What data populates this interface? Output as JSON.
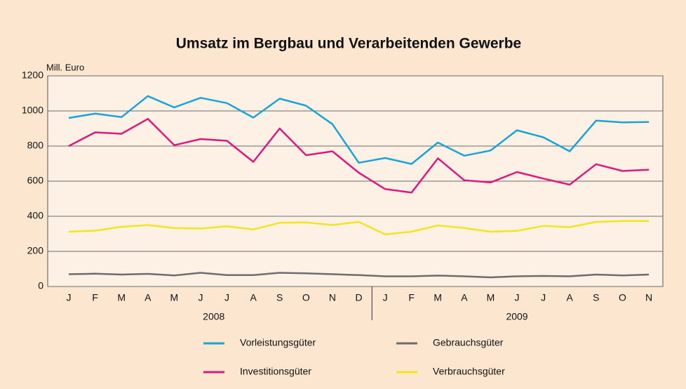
{
  "chart_data": {
    "type": "line",
    "title": "Umsatz im Bergbau und Verarbeitenden Gewerbe",
    "y_label": "Mill. Euro",
    "categories": [
      "J",
      "F",
      "M",
      "A",
      "M",
      "J",
      "J",
      "A",
      "S",
      "O",
      "N",
      "D",
      "J",
      "F",
      "M",
      "A",
      "M",
      "J",
      "J",
      "A",
      "S",
      "O",
      "N"
    ],
    "x_groups": [
      {
        "label": "2008",
        "size": 12
      },
      {
        "label": "2009",
        "size": 11
      }
    ],
    "ylim": [
      0,
      1200
    ],
    "yticks": [
      0,
      200,
      400,
      600,
      800,
      1000,
      1200
    ],
    "grid": true,
    "series": [
      {
        "name": "Vorleistungsgüter",
        "color": "#1ba3d6",
        "values": [
          960,
          985,
          965,
          1085,
          1020,
          1075,
          1045,
          962,
          1070,
          1030,
          925,
          705,
          732,
          698,
          820,
          745,
          775,
          890,
          850,
          770,
          945,
          935,
          937
        ]
      },
      {
        "name": "Gebrauchsgüter",
        "color": "#6d6d6d",
        "values": [
          70,
          73,
          68,
          72,
          63,
          78,
          65,
          65,
          78,
          75,
          70,
          65,
          58,
          58,
          62,
          58,
          52,
          58,
          60,
          58,
          68,
          63,
          68
        ]
      },
      {
        "name": "Investitionsgüter",
        "color": "#e0177d",
        "values": [
          800,
          878,
          870,
          955,
          805,
          840,
          830,
          710,
          900,
          748,
          770,
          648,
          555,
          535,
          730,
          605,
          593,
          652,
          615,
          580,
          697,
          658,
          665
        ]
      },
      {
        "name": "Verbrauchsgüter",
        "color": "#f2e51c",
        "values": [
          312,
          318,
          340,
          350,
          333,
          330,
          343,
          325,
          363,
          365,
          350,
          368,
          297,
          312,
          348,
          333,
          312,
          317,
          345,
          338,
          368,
          373,
          373
        ]
      }
    ]
  }
}
